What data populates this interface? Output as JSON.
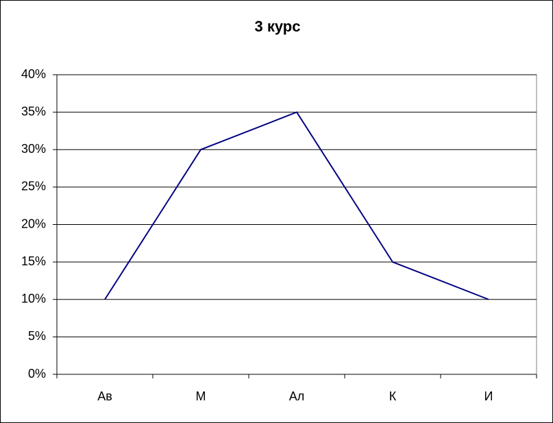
{
  "chart_data": {
    "type": "line",
    "title": "3 курс",
    "categories": [
      "Ав",
      "М",
      "Ал",
      "К",
      "И"
    ],
    "values": [
      10,
      30,
      35,
      15,
      10
    ],
    "color": "#000080",
    "ylim": [
      0,
      40
    ],
    "yticks": [
      {
        "value": 0,
        "label": "0%"
      },
      {
        "value": 5,
        "label": "5%"
      },
      {
        "value": 10,
        "label": "10%"
      },
      {
        "value": 15,
        "label": "15%"
      },
      {
        "value": 20,
        "label": "20%"
      },
      {
        "value": 25,
        "label": "25%"
      },
      {
        "value": 30,
        "label": "30%"
      },
      {
        "value": 35,
        "label": "35%"
      },
      {
        "value": 40,
        "label": "40%"
      }
    ],
    "grid": true
  }
}
